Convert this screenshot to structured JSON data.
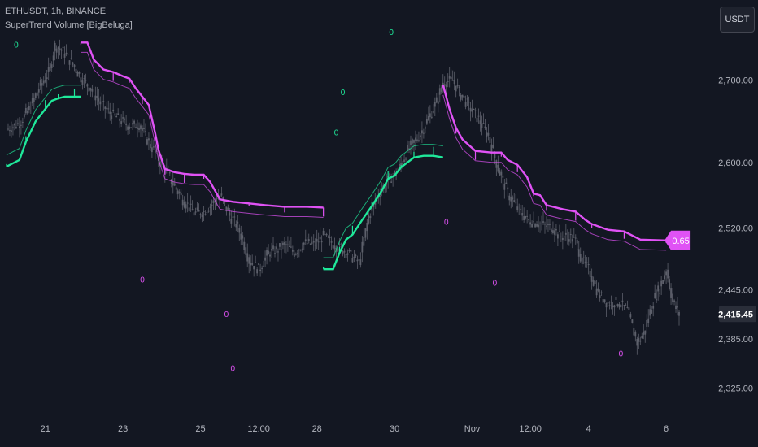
{
  "header": {
    "symbol_line": "ETHUSDT, 1h, BINANCE",
    "indicator_line": "SuperTrend Volume [BigBeluga]"
  },
  "currency_button": "USDT",
  "colors": {
    "background": "#131722",
    "bull": "#1fe89a",
    "bear": "#e052f5",
    "candle": "#5d606b",
    "price_badge": "#2a2e39",
    "axis_text": "#b2b5be"
  },
  "chart_data": {
    "type": "line",
    "title": "ETHUSDT, 1h, BINANCE",
    "xlabel": "",
    "ylabel": "",
    "ylim": [
      2298,
      2770
    ],
    "y_ticks": [
      "2,700.00",
      "2,600.00",
      "2,520.00",
      "2,445.00",
      "2,385.00",
      "2,325.00"
    ],
    "y_tick_values": [
      2700,
      2600,
      2520,
      2445,
      2385,
      2325
    ],
    "x_ticks": [
      "21",
      "23",
      "25",
      "12:00",
      "28",
      "30",
      "Nov",
      "12:00",
      "4",
      "6"
    ],
    "x_tick_hours": [
      24,
      72,
      120,
      156,
      192,
      240,
      288,
      324,
      360,
      408
    ],
    "xlim_hours": [
      0,
      416
    ],
    "current_price": "2,415.45",
    "current_price_value": 2415.45,
    "last_volume_label": "0.65",
    "series": [
      {
        "name": "",
        "role": "close",
        "points": [
          [
            0,
            2640
          ],
          [
            8,
            2648
          ],
          [
            14,
            2665
          ],
          [
            20,
            2690
          ],
          [
            26,
            2710
          ],
          [
            30,
            2742
          ],
          [
            35,
            2735
          ],
          [
            40,
            2722
          ],
          [
            46,
            2703
          ],
          [
            52,
            2690
          ],
          [
            58,
            2672
          ],
          [
            64,
            2660
          ],
          [
            70,
            2652
          ],
          [
            76,
            2644
          ],
          [
            82,
            2646
          ],
          [
            88,
            2624
          ],
          [
            94,
            2604
          ],
          [
            100,
            2585
          ],
          [
            104,
            2570
          ],
          [
            110,
            2552
          ],
          [
            116,
            2538
          ],
          [
            122,
            2540
          ],
          [
            126,
            2547
          ],
          [
            132,
            2560
          ],
          [
            138,
            2535
          ],
          [
            142,
            2525
          ],
          [
            146,
            2506
          ],
          [
            150,
            2480
          ],
          [
            156,
            2470
          ],
          [
            162,
            2490
          ],
          [
            168,
            2494
          ],
          [
            172,
            2500
          ],
          [
            178,
            2490
          ],
          [
            184,
            2502
          ],
          [
            190,
            2500
          ],
          [
            196,
            2510
          ],
          [
            204,
            2498
          ],
          [
            212,
            2488
          ],
          [
            218,
            2478
          ],
          [
            224,
            2535
          ],
          [
            230,
            2562
          ],
          [
            236,
            2578
          ],
          [
            242,
            2590
          ],
          [
            248,
            2615
          ],
          [
            256,
            2635
          ],
          [
            262,
            2658
          ],
          [
            266,
            2674
          ],
          [
            270,
            2698
          ],
          [
            276,
            2700
          ],
          [
            280,
            2685
          ],
          [
            286,
            2668
          ],
          [
            292,
            2652
          ],
          [
            298,
            2632
          ],
          [
            304,
            2592
          ],
          [
            310,
            2562
          ],
          [
            316,
            2544
          ],
          [
            322,
            2530
          ],
          [
            330,
            2525
          ],
          [
            338,
            2520
          ],
          [
            342,
            2510
          ],
          [
            348,
            2510
          ],
          [
            352,
            2504
          ],
          [
            356,
            2480
          ],
          [
            360,
            2470
          ],
          [
            366,
            2440
          ],
          [
            372,
            2428
          ],
          [
            378,
            2430
          ],
          [
            384,
            2420
          ],
          [
            390,
            2380
          ],
          [
            394,
            2392
          ],
          [
            400,
            2432
          ],
          [
            404,
            2448
          ],
          [
            408,
            2470
          ],
          [
            412,
            2430
          ],
          [
            416,
            2415
          ]
        ]
      },
      {
        "name": "",
        "role": "supertrend-bull",
        "points": [
          [
            0,
            2595
          ],
          [
            8,
            2603
          ],
          [
            12,
            2625
          ],
          [
            18,
            2650
          ],
          [
            24,
            2665
          ],
          [
            28,
            2675
          ],
          [
            32,
            2678
          ],
          [
            36,
            2680
          ],
          [
            42,
            2680
          ],
          [
            46,
            2680
          ]
        ]
      },
      {
        "name": "",
        "role": "supertrend-bear",
        "points": [
          [
            46,
            2746
          ],
          [
            50,
            2746
          ],
          [
            54,
            2725
          ],
          [
            60,
            2713
          ],
          [
            66,
            2710
          ],
          [
            72,
            2705
          ],
          [
            76,
            2702
          ],
          [
            80,
            2690
          ],
          [
            84,
            2680
          ],
          [
            88,
            2670
          ],
          [
            92,
            2635
          ],
          [
            94,
            2615
          ],
          [
            98,
            2592
          ],
          [
            104,
            2588
          ],
          [
            110,
            2586
          ],
          [
            116,
            2585
          ],
          [
            122,
            2585
          ],
          [
            126,
            2576
          ],
          [
            132,
            2555
          ],
          [
            140,
            2552
          ],
          [
            150,
            2550
          ],
          [
            160,
            2548
          ],
          [
            172,
            2546
          ],
          [
            186,
            2546
          ],
          [
            196,
            2545
          ]
        ]
      },
      {
        "name": "",
        "role": "supertrend-bull",
        "points": [
          [
            196,
            2470
          ],
          [
            202,
            2470
          ],
          [
            206,
            2490
          ],
          [
            210,
            2506
          ],
          [
            214,
            2512
          ],
          [
            220,
            2530
          ],
          [
            226,
            2547
          ],
          [
            232,
            2565
          ],
          [
            236,
            2580
          ],
          [
            240,
            2584
          ],
          [
            244,
            2594
          ],
          [
            248,
            2600
          ],
          [
            252,
            2606
          ],
          [
            258,
            2608
          ],
          [
            264,
            2608
          ],
          [
            270,
            2606
          ]
        ]
      },
      {
        "name": "",
        "role": "supertrend-bear",
        "points": [
          [
            270,
            2694
          ],
          [
            274,
            2665
          ],
          [
            278,
            2642
          ],
          [
            282,
            2628
          ],
          [
            290,
            2614
          ],
          [
            300,
            2612
          ],
          [
            306,
            2612
          ],
          [
            310,
            2603
          ],
          [
            316,
            2597
          ],
          [
            322,
            2582
          ],
          [
            326,
            2562
          ],
          [
            330,
            2560
          ],
          [
            334,
            2548
          ],
          [
            344,
            2543
          ],
          [
            352,
            2540
          ],
          [
            358,
            2530
          ],
          [
            362,
            2525
          ],
          [
            372,
            2518
          ],
          [
            382,
            2516
          ],
          [
            392,
            2506
          ],
          [
            408,
            2505
          ]
        ]
      }
    ],
    "bull_zero_labels": [
      [
        6,
        2740
      ],
      [
        208,
        2682
      ],
      [
        204,
        2633
      ],
      [
        238,
        2755
      ]
    ],
    "bear_zero_labels": [
      [
        84,
        2454
      ],
      [
        136,
        2412
      ],
      [
        140,
        2346
      ],
      [
        272,
        2524
      ],
      [
        302,
        2450
      ],
      [
        380,
        2364
      ]
    ]
  }
}
